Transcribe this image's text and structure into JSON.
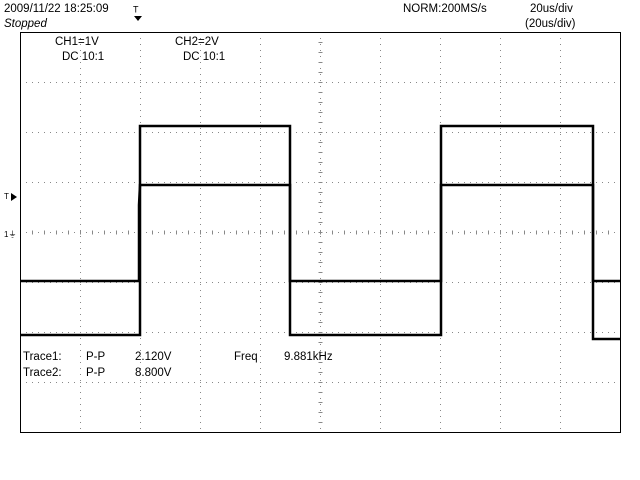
{
  "header": {
    "datetime": "2009/11/22  18:25:09",
    "status": "Stopped",
    "sample_rate": "NORM:200MS/s",
    "timebase": "20us/div",
    "timebase_setting": "(20us/div)"
  },
  "channels": [
    {
      "label": "CH1=1V",
      "coupling": "DC  10:1"
    },
    {
      "label": "CH2=2V",
      "coupling": "DC  10:1"
    }
  ],
  "measurements": [
    {
      "label": "Trace1:",
      "type": "P-P",
      "value": "2.120V"
    },
    {
      "label": "Trace2:",
      "type": "P-P",
      "value": "8.800V"
    }
  ],
  "frequency": {
    "label": "Freq",
    "value": "9.881kHz"
  }
}
